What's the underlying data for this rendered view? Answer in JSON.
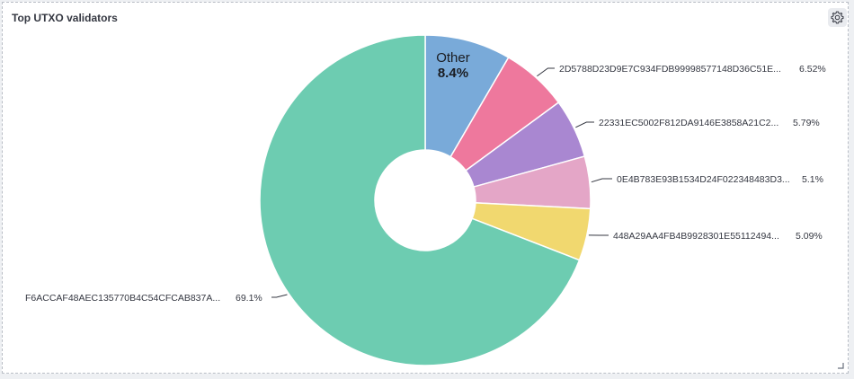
{
  "panel": {
    "title": "Top UTXO validators",
    "gear_icon": "gear-icon",
    "resize_icon": "resize-handle-icon"
  },
  "chart_data": {
    "type": "pie",
    "donut": true,
    "title": "Top UTXO validators",
    "slices": [
      {
        "label": "Other",
        "display_value": "8.4%",
        "value": 8.4,
        "color": "#79aad9",
        "inside_label": true
      },
      {
        "label": "2D5788D23D9E7C934FDB99998577148D36C51E...",
        "display_value": "6.52%",
        "value": 6.52,
        "color": "#ee789d"
      },
      {
        "label": "22331EC5002F812DA9146E3858A21C2...",
        "display_value": "5.79%",
        "value": 5.79,
        "color": "#a987d1"
      },
      {
        "label": "0E4B783E93B1534D24F022348483D3...",
        "display_value": "5.1%",
        "value": 5.1,
        "color": "#e4a6c7"
      },
      {
        "label": "448A29AA4FB4B9928301E55112494...",
        "display_value": "5.09%",
        "value": 5.09,
        "color": "#f1d86f"
      },
      {
        "label": "F6ACCAF48AEC135770B4C54CFCAB837A...",
        "display_value": "69.1%",
        "value": 69.1,
        "color": "#6dccb1"
      }
    ]
  }
}
